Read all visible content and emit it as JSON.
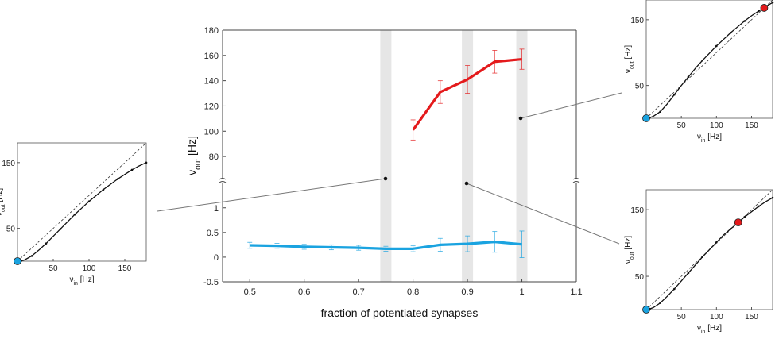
{
  "chart_data": [
    {
      "type": "line",
      "title": "",
      "xlabel": "fraction of potentiated synapses",
      "ylabel": {
        "symbol": "ν",
        "sub": "out",
        "unit": " [Hz]"
      },
      "x_ticks": [
        "0.5",
        "0.6",
        "0.7",
        "0.8",
        "0.9",
        "1",
        "1.1"
      ],
      "y_ticks_upper": [
        "80",
        "100",
        "120",
        "140",
        "160",
        "180"
      ],
      "y_ticks_lower": [
        "-0.5",
        "0",
        "0.5",
        "1"
      ],
      "xlim": [
        0.45,
        1.1
      ],
      "ylim_lower": [
        -0.5,
        1.35
      ],
      "ylim_upper": [
        70,
        180
      ],
      "broken_axis": true,
      "highlight_bands": [
        0.75,
        0.9,
        1.0
      ],
      "grid": false,
      "series": [
        {
          "color": "#e41a1c",
          "x": [
            0.8,
            0.85,
            0.9,
            0.95,
            1.0
          ],
          "y": [
            101,
            131,
            141,
            155,
            157
          ],
          "err": [
            8,
            9,
            11,
            9,
            8
          ]
        },
        {
          "color": "#1aa3e0",
          "x": [
            0.5,
            0.55,
            0.6,
            0.65,
            0.7,
            0.75,
            0.8,
            0.85,
            0.9,
            0.95,
            1.0
          ],
          "y": [
            0.24,
            0.23,
            0.21,
            0.2,
            0.19,
            0.17,
            0.17,
            0.25,
            0.27,
            0.31,
            0.26
          ],
          "err": [
            0.06,
            0.05,
            0.05,
            0.05,
            0.05,
            0.05,
            0.06,
            0.13,
            0.16,
            0.21,
            0.27
          ]
        }
      ]
    },
    {
      "type": "line",
      "panel": "left inset",
      "xlabel": {
        "symbol": "ν",
        "sub": "in",
        "unit": " [Hz]"
      },
      "ylabel": {
        "symbol": "ν",
        "sub": "out",
        "unit": " [Hz]"
      },
      "x_ticks": [
        "50",
        "100",
        "150"
      ],
      "y_ticks": [
        "50",
        "150"
      ],
      "xlim": [
        0,
        180
      ],
      "ylim": [
        0,
        180
      ],
      "x": [
        0,
        5,
        10,
        20,
        30,
        40,
        50,
        60,
        70,
        80,
        90,
        100,
        110,
        120,
        130,
        140,
        150,
        160,
        170,
        180
      ],
      "y": [
        0,
        0.5,
        2,
        8,
        17,
        27,
        38,
        49,
        60,
        71,
        81,
        91,
        100,
        109,
        117,
        125,
        132,
        139,
        145,
        150
      ],
      "fixed_point": {
        "x": 0,
        "y": 0,
        "color": "#1aa3e0"
      }
    },
    {
      "type": "line",
      "panel": "top-right inset",
      "xlabel": {
        "symbol": "ν",
        "sub": "in",
        "unit": " [Hz]"
      },
      "ylabel": {
        "symbol": "ν",
        "sub": "out",
        "unit": " [Hz]"
      },
      "x_ticks": [
        "50",
        "100",
        "150"
      ],
      "y_ticks": [
        "50",
        "150"
      ],
      "xlim": [
        0,
        180
      ],
      "ylim": [
        0,
        180
      ],
      "x": [
        0,
        5,
        10,
        20,
        30,
        40,
        50,
        60,
        70,
        80,
        90,
        100,
        110,
        120,
        130,
        140,
        150,
        160,
        170,
        180
      ],
      "y": [
        0,
        1,
        3,
        10,
        22,
        36,
        50,
        63,
        76,
        88,
        99,
        110,
        120,
        130,
        139,
        148,
        156,
        163,
        170,
        176
      ],
      "fixed_points": [
        {
          "x": 0,
          "y": 0,
          "color": "#1aa3e0"
        },
        {
          "x": 168,
          "y": 168,
          "color": "#e41a1c"
        }
      ]
    },
    {
      "type": "line",
      "panel": "bottom-right inset",
      "xlabel": {
        "symbol": "ν",
        "sub": "in",
        "unit": " [Hz]"
      },
      "ylabel": {
        "symbol": "ν",
        "sub": "out",
        "unit": " [Hz]"
      },
      "x_ticks": [
        "50",
        "100",
        "150"
      ],
      "y_ticks": [
        "50",
        "150"
      ],
      "xlim": [
        0,
        180
      ],
      "ylim": [
        0,
        180
      ],
      "x": [
        0,
        5,
        10,
        20,
        30,
        40,
        50,
        60,
        70,
        80,
        90,
        100,
        110,
        120,
        130,
        140,
        150,
        160,
        170,
        180
      ],
      "y": [
        0,
        1,
        3,
        10,
        20,
        31,
        43,
        55,
        67,
        79,
        90,
        101,
        112,
        121,
        130,
        139,
        147,
        155,
        162,
        168
      ],
      "fixed_points": [
        {
          "x": 0,
          "y": 0,
          "color": "#1aa3e0"
        },
        {
          "x": 131,
          "y": 131,
          "color": "#e41a1c"
        }
      ]
    }
  ]
}
